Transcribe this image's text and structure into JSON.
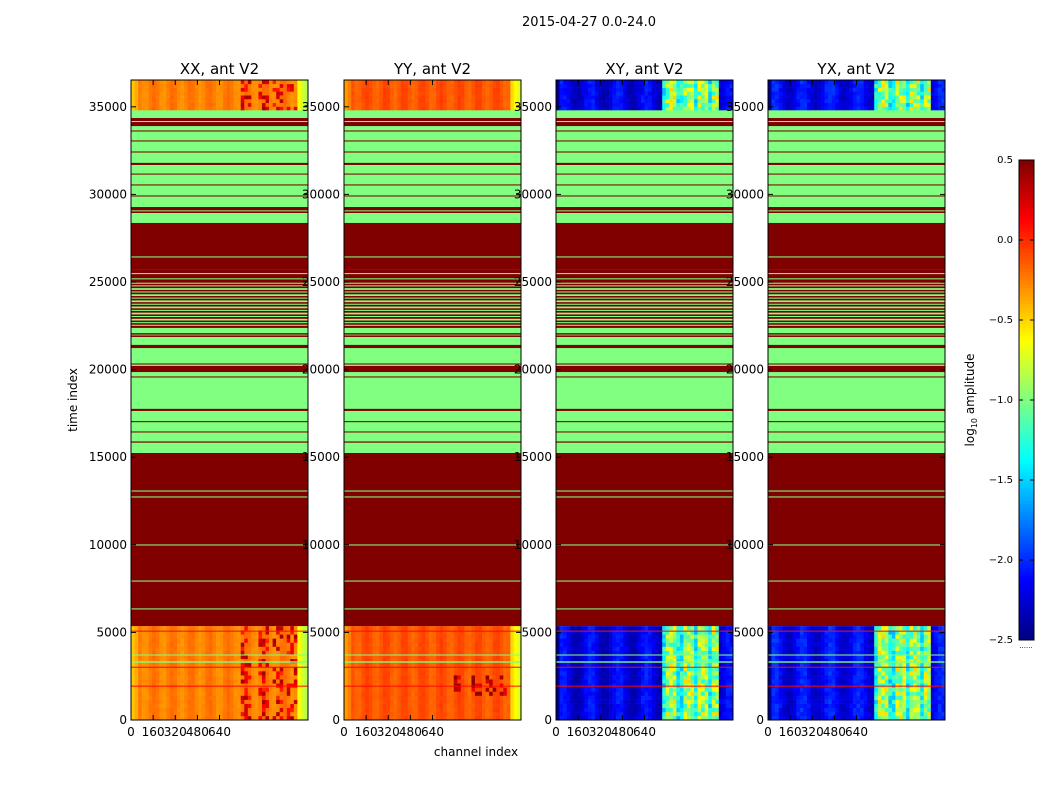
{
  "chart_data": {
    "type": "heatmap",
    "title": "2015-04-27 0.0-24.0",
    "xlabel": "channel index",
    "ylabel": "time index",
    "xlim": [
      0,
      1280
    ],
    "ylim": [
      0,
      36530
    ],
    "xticks": [
      "0",
      "160",
      "320",
      "480",
      "640"
    ],
    "xtick_values": [
      0,
      160,
      320,
      480,
      640
    ],
    "yticks": [
      "0",
      "5000",
      "10000",
      "15000",
      "20000",
      "25000",
      "30000",
      "35000"
    ],
    "ytick_values": [
      0,
      5000,
      10000,
      15000,
      20000,
      25000,
      30000,
      35000
    ],
    "panels": [
      {
        "title": "XX, ant V2",
        "kind": "parallel",
        "data_level": -0.25
      },
      {
        "title": "YY, ant V2",
        "kind": "parallel",
        "data_level": -0.12
      },
      {
        "title": "XY, ant V2",
        "kind": "cross",
        "data_level": -2.2
      },
      {
        "title": "YX, ant V2",
        "kind": "cross",
        "data_level": -2.15
      }
    ],
    "colorbar": {
      "label": "log10 amplitude",
      "label_main": "log",
      "label_sub": "10",
      "label_rest": " amplitude",
      "colormap": "jet",
      "range": [
        -2.5,
        0.5
      ],
      "ticks": [
        "0.5",
        "0.0",
        "−0.5",
        "−1.0",
        "−1.5",
        "−2.0",
        "−2.5"
      ],
      "tick_values": [
        0.5,
        0.0,
        -0.5,
        -1.0,
        -1.5,
        -2.0,
        -2.5
      ],
      "footer": "......"
    },
    "data_regions": [
      [
        0,
        5360
      ],
      [
        34800,
        36530
      ]
    ],
    "segments": [
      [
        5360,
        15240,
        0.5
      ],
      [
        15240,
        34800,
        -1.0
      ],
      [
        6310,
        6370,
        -1.0
      ],
      [
        7900,
        7960,
        -1.0
      ],
      [
        9960,
        10020,
        -1.0
      ],
      [
        12700,
        12760,
        -1.0
      ],
      [
        13040,
        13100,
        -1.0
      ],
      [
        15830,
        15900,
        0.5
      ],
      [
        16410,
        16470,
        0.5
      ],
      [
        17000,
        17060,
        0.5
      ],
      [
        17640,
        17760,
        0.5
      ],
      [
        19550,
        19610,
        0.5
      ],
      [
        19860,
        20210,
        0.5
      ],
      [
        20290,
        20350,
        0.5
      ],
      [
        21230,
        21410,
        0.5
      ],
      [
        21880,
        21920,
        0.5
      ],
      [
        21960,
        22000,
        0.5
      ],
      [
        22040,
        22080,
        0.5
      ],
      [
        22380,
        25690,
        0.5
      ],
      [
        22500,
        22560,
        -1.0
      ],
      [
        22650,
        22710,
        -1.0
      ],
      [
        22800,
        22900,
        -1.0
      ],
      [
        23000,
        23060,
        -1.0
      ],
      [
        23150,
        23250,
        -1.0
      ],
      [
        23350,
        23410,
        -1.0
      ],
      [
        23500,
        23600,
        -1.0
      ],
      [
        23700,
        23760,
        -1.0
      ],
      [
        23850,
        23950,
        -1.0
      ],
      [
        24050,
        24110,
        -1.0
      ],
      [
        24200,
        24300,
        -1.0
      ],
      [
        24400,
        24460,
        -1.0
      ],
      [
        24550,
        24650,
        -1.0
      ],
      [
        24750,
        24810,
        -1.0
      ],
      [
        24900,
        24960,
        -1.0
      ],
      [
        25150,
        25210,
        -1.0
      ],
      [
        25450,
        25510,
        -1.0
      ],
      [
        25690,
        28370,
        0.5
      ],
      [
        26400,
        26460,
        -1.0
      ],
      [
        28940,
        29280,
        0.5
      ],
      [
        29040,
        29090,
        -1.0
      ],
      [
        29880,
        29940,
        0.5
      ],
      [
        30510,
        30570,
        0.5
      ],
      [
        31130,
        31190,
        0.5
      ],
      [
        31680,
        31800,
        0.5
      ],
      [
        32390,
        32450,
        0.5
      ],
      [
        33020,
        33080,
        0.5
      ],
      [
        33590,
        33650,
        0.5
      ],
      [
        33900,
        34130,
        0.5
      ],
      [
        34190,
        34360,
        0.5
      ],
      [
        3270,
        3350,
        -1.0
      ],
      [
        3680,
        3740,
        -1.0
      ],
      [
        1910,
        1960,
        0.1
      ],
      [
        3000,
        3040,
        0.1
      ],
      [
        5060,
        5100,
        0.1
      ]
    ]
  }
}
